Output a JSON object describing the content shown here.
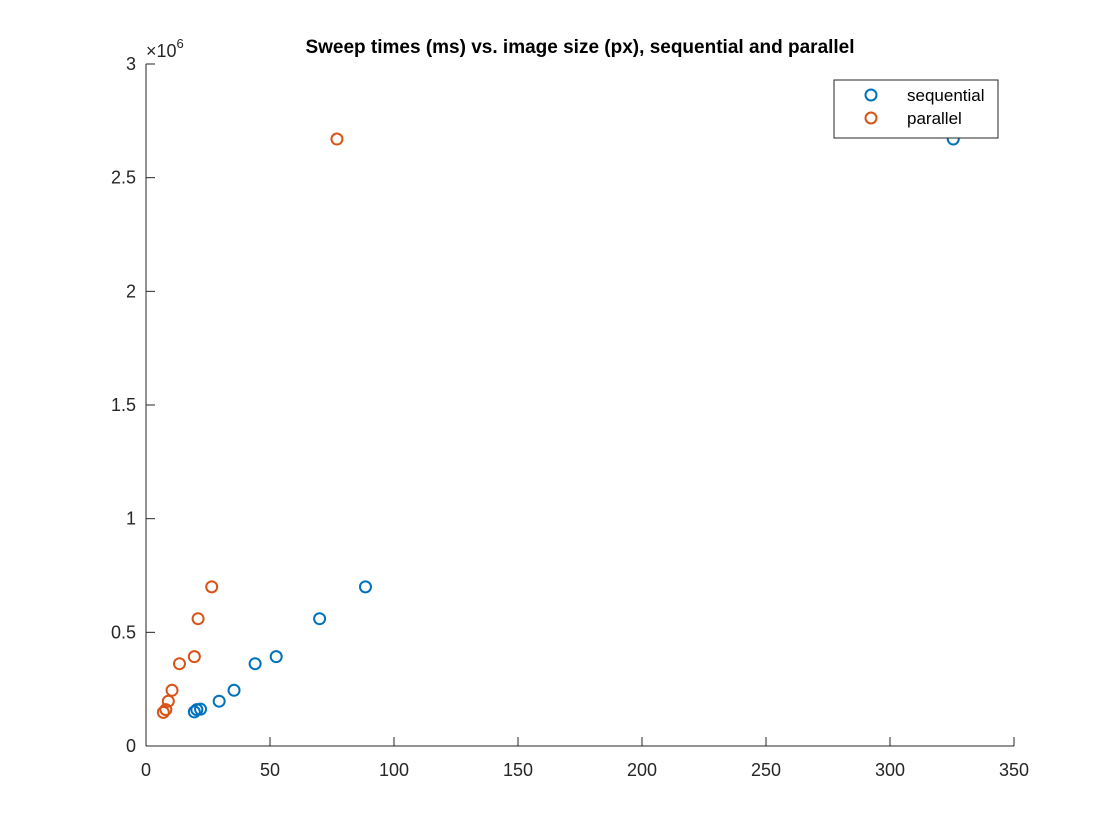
{
  "chart_data": {
    "type": "scatter",
    "title": "Sweep times (ms) vs. image size (px), sequential and parallel",
    "xlabel": "",
    "ylabel": "",
    "xlim": [
      0,
      350
    ],
    "ylim": [
      0,
      3000000
    ],
    "xticks": [
      0,
      50,
      100,
      150,
      200,
      250,
      300,
      350
    ],
    "xtick_labels": [
      "0",
      "50",
      "100",
      "150",
      "200",
      "250",
      "300",
      "350"
    ],
    "yticks": [
      0,
      500000,
      1000000,
      1500000,
      2000000,
      2500000,
      3000000
    ],
    "ytick_labels": [
      "0",
      "0.5",
      "1",
      "1.5",
      "2",
      "2.5",
      "3"
    ],
    "y_exponent_label": "×10",
    "y_exponent_power": "6",
    "grid": false,
    "legend_position": "top-right",
    "series": [
      {
        "name": "sequential",
        "color": "#0072BD",
        "marker": "circle-open",
        "points": [
          {
            "x": 19.5,
            "y": 150000
          },
          {
            "x": 20.5,
            "y": 160000
          },
          {
            "x": 22,
            "y": 162000
          },
          {
            "x": 29.5,
            "y": 197000
          },
          {
            "x": 35.5,
            "y": 245000
          },
          {
            "x": 44,
            "y": 362000
          },
          {
            "x": 52.5,
            "y": 393000
          },
          {
            "x": 70,
            "y": 560000
          },
          {
            "x": 88.5,
            "y": 700000
          },
          {
            "x": 325.5,
            "y": 2670000
          }
        ]
      },
      {
        "name": "parallel",
        "color": "#D95319",
        "marker": "circle-open",
        "points": [
          {
            "x": 7,
            "y": 148000
          },
          {
            "x": 8,
            "y": 160000
          },
          {
            "x": 9,
            "y": 197000
          },
          {
            "x": 10.5,
            "y": 245000
          },
          {
            "x": 13.5,
            "y": 362000
          },
          {
            "x": 19.5,
            "y": 393000
          },
          {
            "x": 21,
            "y": 560000
          },
          {
            "x": 26.5,
            "y": 700000
          },
          {
            "x": 77,
            "y": 2670000
          }
        ]
      }
    ]
  }
}
